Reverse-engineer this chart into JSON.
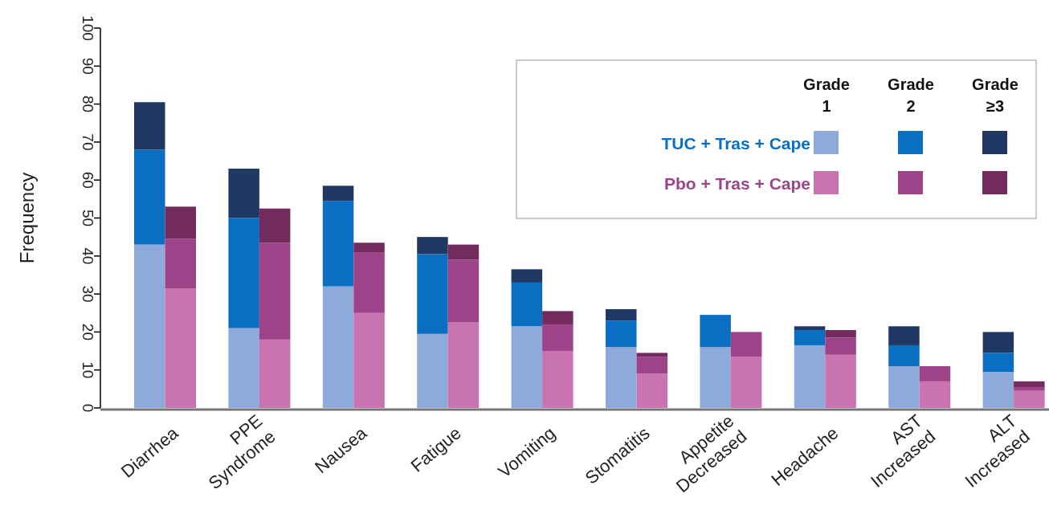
{
  "chart_data": {
    "type": "bar",
    "stacked": true,
    "ylabel": "Frequency",
    "ylim": [
      0,
      100
    ],
    "yticks": [
      0,
      10,
      20,
      30,
      40,
      50,
      60,
      70,
      80,
      90,
      100
    ],
    "annotations": [
      "Grade 1",
      "Grade 2",
      "Grade ≥3",
      "TUC + Tras + Cape",
      "Pbo + Tras + Cape"
    ],
    "categories": [
      "Diarrhea",
      null,
      "PPE Syndrome",
      null,
      "Nausea",
      null,
      "Fatigue",
      null,
      "Vomiting",
      null,
      "Stomatitis",
      null,
      "Appetite Decreased",
      null,
      "Headache",
      null,
      "AST Increased",
      null,
      "ALT Increased",
      null
    ],
    "series": [
      {
        "color": "#8eaadb",
        "values": [
          43,
          null,
          21,
          null,
          32,
          null,
          19.5,
          null,
          21.5,
          null,
          16,
          null,
          16,
          null,
          16.5,
          null,
          11,
          null,
          9.5,
          null
        ]
      },
      {
        "color": "#0a6fc2",
        "values": [
          25,
          null,
          29,
          null,
          22.5,
          null,
          21,
          null,
          11.5,
          null,
          7,
          null,
          8.5,
          null,
          4,
          null,
          5.5,
          null,
          5,
          null
        ]
      },
      {
        "color": "#1f3864",
        "values": [
          12.5,
          null,
          13,
          null,
          4,
          null,
          4.5,
          null,
          3.5,
          null,
          3,
          null,
          0,
          null,
          1,
          null,
          5,
          null,
          5.5,
          null
        ]
      },
      {
        "color": "#c974b0",
        "values": [
          null,
          31.5,
          null,
          18,
          null,
          25,
          null,
          22.5,
          null,
          15,
          null,
          9,
          null,
          13.5,
          null,
          14,
          null,
          7,
          null,
          4.5
        ]
      },
      {
        "color": "#9e4389",
        "values": [
          null,
          13,
          null,
          25.5,
          null,
          16,
          null,
          16.5,
          null,
          7,
          null,
          4.5,
          null,
          6.5,
          null,
          4.5,
          null,
          4,
          null,
          1
        ]
      },
      {
        "color": "#732b5e",
        "values": [
          null,
          8.5,
          null,
          9,
          null,
          2.5,
          null,
          4,
          null,
          3.5,
          null,
          1,
          null,
          0,
          null,
          2,
          null,
          0,
          null,
          1.5
        ]
      }
    ]
  }
}
